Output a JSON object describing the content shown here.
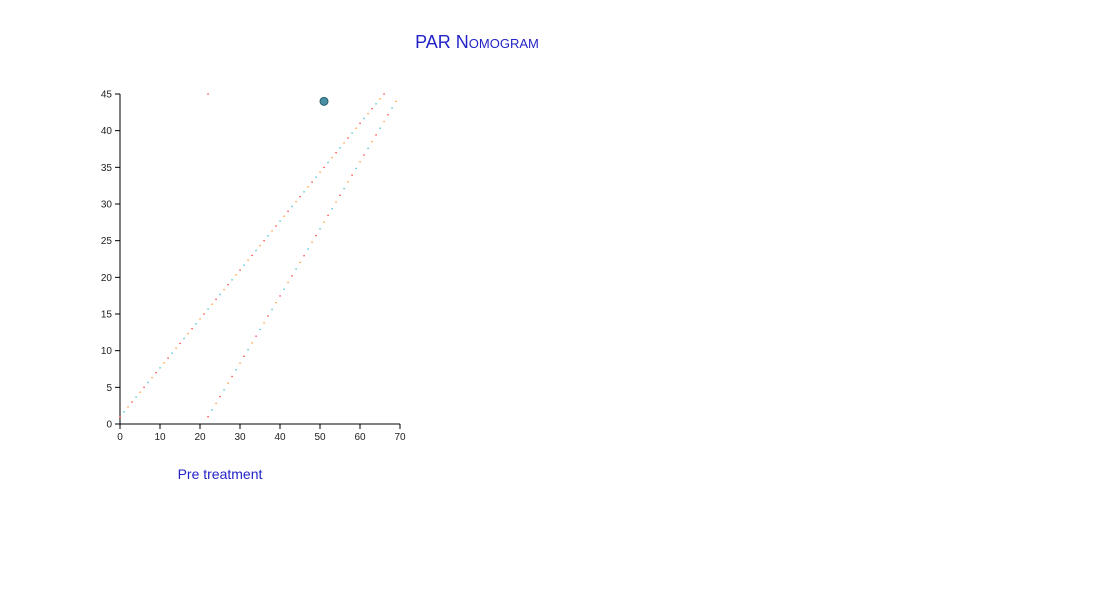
{
  "page": {
    "title": "PAR Nomogram"
  },
  "chart_data": {
    "type": "scatter",
    "title": "PAR Nomogram",
    "xlabel": "Pre treatment",
    "ylabel": "",
    "xlim": [
      0,
      70
    ],
    "ylim": [
      0,
      45
    ],
    "x_ticks": [
      0,
      10,
      20,
      30,
      40,
      50,
      60,
      70
    ],
    "y_ticks": [
      0,
      5,
      10,
      15,
      20,
      25,
      30,
      35,
      40,
      45
    ],
    "grid": false,
    "marker": {
      "x": 51,
      "y": 44,
      "color": "#4a90a4"
    },
    "band_lines": [
      {
        "x_start": 0,
        "y_start": 1,
        "x_end": 66,
        "y_end": 45,
        "step": 1,
        "colors": [
          "#ff2a2a",
          "#2fb8d6",
          "#ff8c1a"
        ]
      },
      {
        "x_start": 22,
        "y_start": 1,
        "x_end": 69,
        "y_end": 44,
        "step": 1,
        "colors": [
          "#ff2a2a",
          "#2fb8d6",
          "#ff8c1a"
        ]
      }
    ],
    "stray_points": [
      {
        "x": 22,
        "y": 45,
        "color": "#ff2a2a"
      }
    ]
  }
}
